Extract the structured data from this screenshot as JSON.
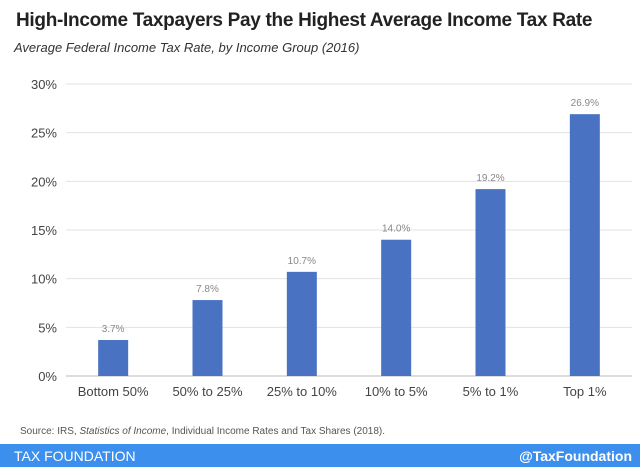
{
  "chart_data": {
    "type": "bar",
    "title": "High-Income Taxpayers Pay the Highest Average Income Tax Rate",
    "subtitle": "Average Federal Income Tax Rate, by Income Group (2016)",
    "categories": [
      "Bottom 50%",
      "50% to 25%",
      "25% to 10%",
      "10% to 5%",
      "5% to 1%",
      "Top 1%"
    ],
    "values": [
      3.7,
      7.8,
      10.7,
      14.0,
      19.2,
      26.9
    ],
    "value_labels": [
      "3.7%",
      "7.8%",
      "10.7%",
      "14.0%",
      "19.2%",
      "26.9%"
    ],
    "yticks": [
      0,
      5,
      10,
      15,
      20,
      25,
      30
    ],
    "ytick_labels": [
      "0%",
      "5%",
      "10%",
      "15%",
      "20%",
      "25%",
      "30%"
    ],
    "ylim": [
      0,
      30
    ],
    "xlabel": "",
    "ylabel": "",
    "grid": true,
    "bar_color": "#4a72c2"
  },
  "source": {
    "prefix": "Source: IRS, ",
    "italic": "Statistics of Income",
    "suffix": ", Individual Income Rates and Tax Shares (2018)."
  },
  "footer": {
    "brand": "TAX FOUNDATION",
    "handle": "@TaxFoundation",
    "color": "#3d8fee"
  }
}
